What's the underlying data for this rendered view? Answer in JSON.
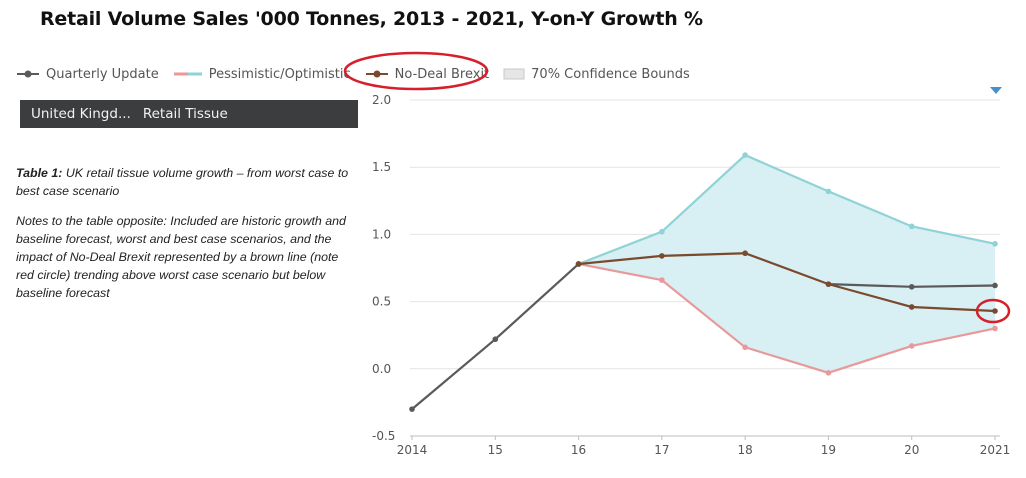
{
  "title": "Retail Volume Sales '000 Tonnes, 2013 - 2021, Y-on-Y Growth %",
  "legend": {
    "items": [
      {
        "label": "Quarterly Update",
        "color": "#5a5a5a",
        "kind": "line"
      },
      {
        "label": "Pessimistic/Optimistic",
        "color": "#e8999a",
        "color2": "#8fd3d6",
        "kind": "bicolor"
      },
      {
        "label": "No-Deal Brexit",
        "color": "#7a4a2e",
        "kind": "line"
      },
      {
        "label": "70% Confidence Bounds",
        "color": "#dcdcdc",
        "kind": "box"
      }
    ]
  },
  "filters": {
    "country": "United Kingd...",
    "category": "Retail Tissue"
  },
  "caption": {
    "bold": "Table 1:",
    "text": " UK retail tissue volume growth – from worst case to best case scenario"
  },
  "notes": "Notes to the table opposite: Included are historic growth and baseline forecast, worst and best case scenarios, and the impact of No-Deal Brexit represented by a brown line (note red circle) trending above worst case scenario but below baseline forecast",
  "chart_data": {
    "type": "line",
    "title": "Retail Volume Sales '000 Tonnes, 2013 - 2021, Y-on-Y Growth %",
    "xlabel": "",
    "ylabel": "",
    "categories": [
      "2014",
      "15",
      "16",
      "17",
      "18",
      "19",
      "20",
      "2021"
    ],
    "ylim": [
      -0.5,
      2.0
    ],
    "yticks": [
      "2.0",
      "1.5",
      "1.0",
      "0.5",
      "0.0",
      "-0.5"
    ],
    "grid": true,
    "series": [
      {
        "name": "Quarterly Update",
        "color": "#5a5a5a",
        "values": [
          -0.3,
          0.22,
          0.78,
          null,
          null,
          0.63,
          0.61,
          0.62
        ]
      },
      {
        "name": "Pessimistic",
        "color": "#e8999a",
        "values": [
          null,
          null,
          0.78,
          0.66,
          0.16,
          -0.03,
          0.17,
          0.3
        ]
      },
      {
        "name": "Optimistic",
        "color": "#8fd3d6",
        "values": [
          null,
          null,
          0.78,
          1.02,
          1.59,
          1.32,
          1.06,
          0.93
        ]
      },
      {
        "name": "No-Deal Brexit",
        "color": "#7a4a2e",
        "values": [
          null,
          null,
          0.78,
          0.84,
          0.86,
          0.63,
          0.46,
          0.43
        ]
      }
    ],
    "band": {
      "name": "70% Confidence Bounds",
      "color": "#d6eef2",
      "from": 2,
      "to": 7
    }
  }
}
